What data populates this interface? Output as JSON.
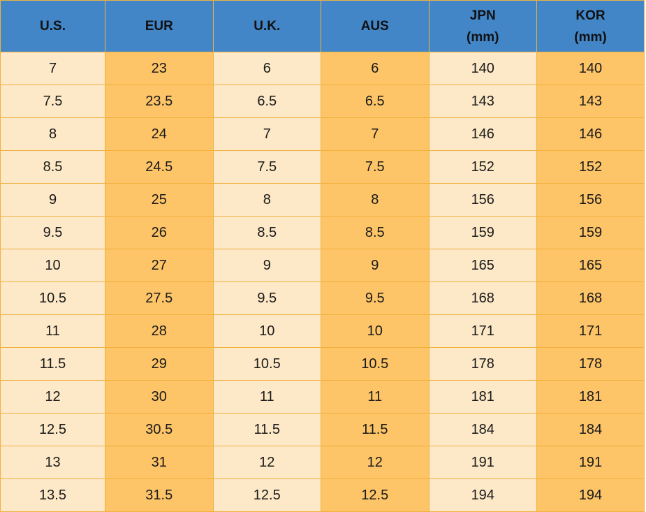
{
  "headers": [
    {
      "line1": "U.S.",
      "line2": ""
    },
    {
      "line1": "EUR",
      "line2": ""
    },
    {
      "line1": "U.K.",
      "line2": ""
    },
    {
      "line1": "AUS",
      "line2": ""
    },
    {
      "line1": "JPN",
      "line2": "(mm)"
    },
    {
      "line1": "KOR",
      "line2": "(mm)"
    }
  ],
  "rows": [
    [
      "7",
      "23",
      "6",
      "6",
      "140",
      "140"
    ],
    [
      "7.5",
      "23.5",
      "6.5",
      "6.5",
      "143",
      "143"
    ],
    [
      "8",
      "24",
      "7",
      "7",
      "146",
      "146"
    ],
    [
      "8.5",
      "24.5",
      "7.5",
      "7.5",
      "152",
      "152"
    ],
    [
      "9",
      "25",
      "8",
      "8",
      "156",
      "156"
    ],
    [
      "9.5",
      "26",
      "8.5",
      "8.5",
      "159",
      "159"
    ],
    [
      "10",
      "27",
      "9",
      "9",
      "165",
      "165"
    ],
    [
      "10.5",
      "27.5",
      "9.5",
      "9.5",
      "168",
      "168"
    ],
    [
      "11",
      "28",
      "10",
      "10",
      "171",
      "171"
    ],
    [
      "11.5",
      "29",
      "10.5",
      "10.5",
      "178",
      "178"
    ],
    [
      "12",
      "30",
      "11",
      "11",
      "181",
      "181"
    ],
    [
      "12.5",
      "30.5",
      "11.5",
      "11.5",
      "184",
      "184"
    ],
    [
      "13",
      "31",
      "12",
      "12",
      "191",
      "191"
    ],
    [
      "13.5",
      "31.5",
      "12.5",
      "12.5",
      "194",
      "194"
    ]
  ],
  "colors": {
    "header_bg": "#4286c8",
    "light_cell": "#fde8c7",
    "dark_cell": "#fdc468",
    "grid_line": "#f1b13e"
  }
}
